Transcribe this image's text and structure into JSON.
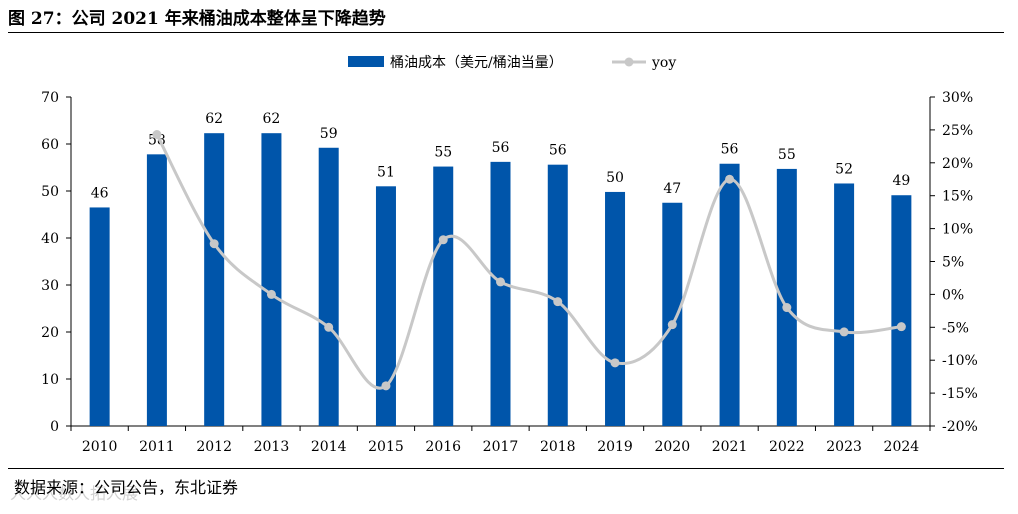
{
  "figure": {
    "title": "图 27：公司 2021 年来桶油成本整体呈下降趋势",
    "source": "数据来源：公司公告，东北证券",
    "watermark": "人人人数人拓人展"
  },
  "chart_data": {
    "type": "bar",
    "categories": [
      "2010",
      "2011",
      "2012",
      "2013",
      "2014",
      "2015",
      "2016",
      "2017",
      "2018",
      "2019",
      "2020",
      "2021",
      "2022",
      "2023",
      "2024"
    ],
    "series": [
      {
        "name": "桶油成本（美元/桶油当量）",
        "type": "bar",
        "axis": "left",
        "color": "#0055aa",
        "values": [
          46.5,
          57.8,
          62.3,
          62.3,
          59.2,
          51.0,
          55.2,
          56.2,
          55.6,
          49.8,
          47.5,
          55.8,
          54.7,
          51.6,
          49.1
        ],
        "labels": [
          "46",
          "58",
          "62",
          "62",
          "59",
          "51",
          "55",
          "56",
          "56",
          "50",
          "47",
          "56",
          "55",
          "52",
          "49"
        ]
      },
      {
        "name": "yoy",
        "type": "line",
        "axis": "right",
        "color": "#c8c8c8",
        "values": [
          null,
          24.3,
          7.7,
          0.0,
          -5.0,
          -13.9,
          8.3,
          1.9,
          -1.1,
          -10.4,
          -4.6,
          17.5,
          -2.0,
          -5.7,
          -4.9
        ]
      }
    ],
    "y_left": {
      "min": 0,
      "max": 70,
      "step": 10,
      "ticks": [
        "0",
        "10",
        "20",
        "30",
        "40",
        "50",
        "60",
        "70"
      ]
    },
    "y_right": {
      "min": -20,
      "max": 30,
      "step": 5,
      "ticks": [
        "-20%",
        "-15%",
        "-10%",
        "-5%",
        "0%",
        "5%",
        "10%",
        "15%",
        "20%",
        "25%",
        "30%"
      ]
    },
    "legend": {
      "position": "top-center",
      "bar_label": "桶油成本（美元/桶油当量）",
      "line_label": "yoy"
    },
    "grid": false
  }
}
